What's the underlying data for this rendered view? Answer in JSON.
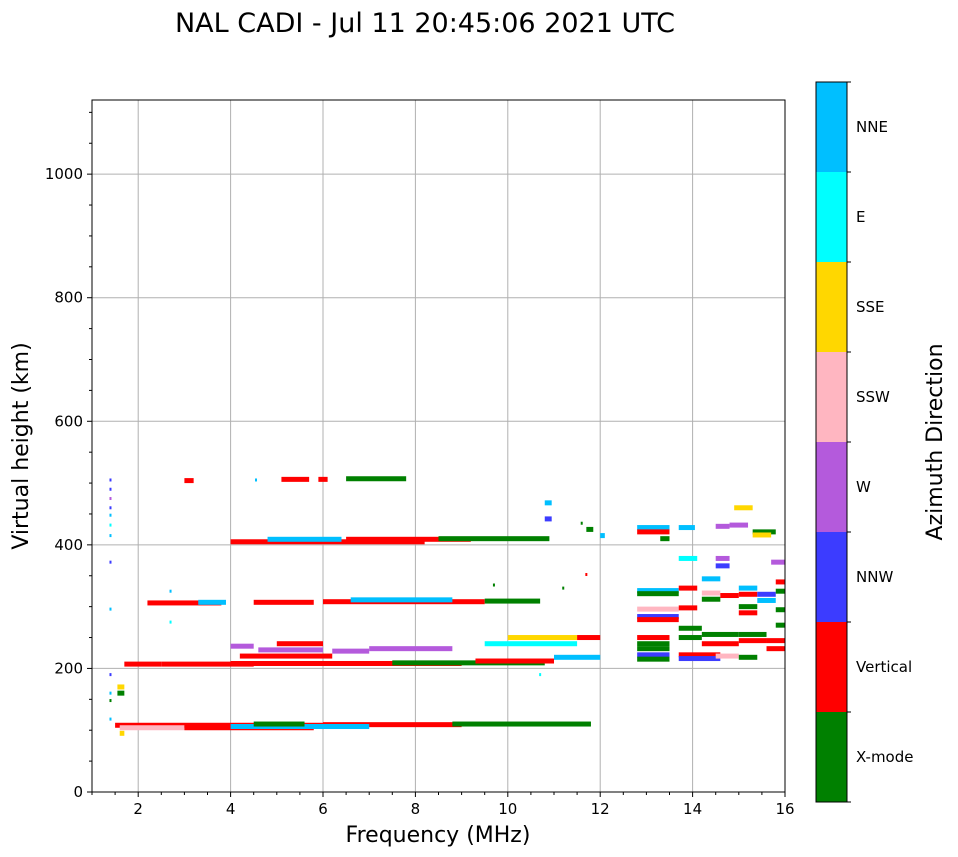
{
  "chart_data": {
    "type": "scatter",
    "title": "NAL CADI - Jul 11 20:45:06 2021 UTC",
    "xlabel": "Frequency (MHz)",
    "ylabel": "Virtual height (km)",
    "xlim": [
      1,
      16
    ],
    "ylim": [
      0,
      1120
    ],
    "xticks": [
      2,
      4,
      6,
      8,
      10,
      12,
      14,
      16
    ],
    "yticks": [
      0,
      200,
      400,
      600,
      800,
      1000
    ],
    "grid": true,
    "colorbar": {
      "label": "Azimuth Direction",
      "categories": [
        {
          "name": "X-mode",
          "color": "#008000"
        },
        {
          "name": "Vertical",
          "color": "#ff0000"
        },
        {
          "name": "NNW",
          "color": "#3c3cff"
        },
        {
          "name": "W",
          "color": "#b45adc"
        },
        {
          "name": "SSW",
          "color": "#ffb6c1"
        },
        {
          "name": "SSE",
          "color": "#ffd700"
        },
        {
          "name": "E",
          "color": "#00ffff"
        },
        {
          "name": "NNE",
          "color": "#00bfff"
        }
      ]
    },
    "traces": [
      {
        "x1": 1.5,
        "x2": 6.0,
        "h": 108,
        "cat": "Vertical"
      },
      {
        "x1": 6.0,
        "x2": 9.0,
        "h": 109,
        "cat": "Vertical"
      },
      {
        "x1": 8.8,
        "x2": 11.8,
        "h": 110,
        "cat": "X-mode"
      },
      {
        "x1": 1.6,
        "x2": 3.0,
        "h": 104,
        "cat": "SSW"
      },
      {
        "x1": 3.0,
        "x2": 5.8,
        "h": 104,
        "cat": "Vertical"
      },
      {
        "x1": 4.0,
        "x2": 7.0,
        "h": 106,
        "cat": "NNE"
      },
      {
        "x1": 4.5,
        "x2": 5.6,
        "h": 110,
        "cat": "X-mode"
      },
      {
        "x1": 1.6,
        "x2": 1.7,
        "h": 95,
        "cat": "SSE"
      },
      {
        "x1": 1.55,
        "x2": 1.7,
        "h": 160,
        "cat": "X-mode"
      },
      {
        "x1": 1.55,
        "x2": 1.7,
        "h": 170,
        "cat": "SSE"
      },
      {
        "x1": 1.7,
        "x2": 2.5,
        "h": 207,
        "cat": "Vertical"
      },
      {
        "x1": 2.5,
        "x2": 4.5,
        "h": 207,
        "cat": "Vertical"
      },
      {
        "x1": 4.0,
        "x2": 9.0,
        "h": 208,
        "cat": "Vertical"
      },
      {
        "x1": 7.5,
        "x2": 10.8,
        "h": 209,
        "cat": "X-mode"
      },
      {
        "x1": 9.3,
        "x2": 11.0,
        "h": 212,
        "cat": "Vertical"
      },
      {
        "x1": 11.0,
        "x2": 12.0,
        "h": 218,
        "cat": "NNE"
      },
      {
        "x1": 4.2,
        "x2": 6.2,
        "h": 220,
        "cat": "Vertical"
      },
      {
        "x1": 4.0,
        "x2": 4.5,
        "h": 236,
        "cat": "W"
      },
      {
        "x1": 4.6,
        "x2": 6.0,
        "h": 230,
        "cat": "W"
      },
      {
        "x1": 6.2,
        "x2": 7.0,
        "h": 228,
        "cat": "W"
      },
      {
        "x1": 7.0,
        "x2": 8.8,
        "h": 232,
        "cat": "W"
      },
      {
        "x1": 5.0,
        "x2": 6.0,
        "h": 240,
        "cat": "Vertical"
      },
      {
        "x1": 9.5,
        "x2": 11.5,
        "h": 240,
        "cat": "E"
      },
      {
        "x1": 10.0,
        "x2": 11.5,
        "h": 250,
        "cat": "SSE"
      },
      {
        "x1": 11.5,
        "x2": 12.0,
        "h": 250,
        "cat": "Vertical"
      },
      {
        "x1": 2.2,
        "x2": 3.8,
        "h": 306,
        "cat": "Vertical"
      },
      {
        "x1": 3.3,
        "x2": 3.9,
        "h": 307,
        "cat": "NNE"
      },
      {
        "x1": 4.5,
        "x2": 5.8,
        "h": 307,
        "cat": "Vertical"
      },
      {
        "x1": 6.0,
        "x2": 9.5,
        "h": 308,
        "cat": "Vertical"
      },
      {
        "x1": 6.6,
        "x2": 8.8,
        "h": 311,
        "cat": "NNE"
      },
      {
        "x1": 9.5,
        "x2": 10.7,
        "h": 309,
        "cat": "X-mode"
      },
      {
        "x1": 4.0,
        "x2": 8.2,
        "h": 405,
        "cat": "Vertical"
      },
      {
        "x1": 4.8,
        "x2": 6.4,
        "h": 409,
        "cat": "NNE"
      },
      {
        "x1": 6.5,
        "x2": 9.2,
        "h": 409,
        "cat": "Vertical"
      },
      {
        "x1": 8.5,
        "x2": 10.9,
        "h": 410,
        "cat": "X-mode"
      },
      {
        "x1": 3.0,
        "x2": 3.2,
        "h": 504,
        "cat": "Vertical"
      },
      {
        "x1": 5.1,
        "x2": 5.7,
        "h": 506,
        "cat": "Vertical"
      },
      {
        "x1": 5.9,
        "x2": 6.1,
        "h": 506,
        "cat": "Vertical"
      },
      {
        "x1": 6.5,
        "x2": 7.8,
        "h": 507,
        "cat": "X-mode"
      },
      {
        "x1": 10.8,
        "x2": 10.95,
        "h": 468,
        "cat": "NNE"
      },
      {
        "x1": 10.8,
        "x2": 10.95,
        "h": 442,
        "cat": "NNW"
      },
      {
        "x1": 11.7,
        "x2": 11.85,
        "h": 425,
        "cat": "X-mode"
      },
      {
        "x1": 12.0,
        "x2": 12.1,
        "h": 415,
        "cat": "NNE"
      },
      {
        "x1": 12.8,
        "x2": 13.5,
        "h": 428,
        "cat": "NNE"
      },
      {
        "x1": 12.8,
        "x2": 13.5,
        "h": 421,
        "cat": "Vertical"
      },
      {
        "x1": 13.3,
        "x2": 13.5,
        "h": 410,
        "cat": "X-mode"
      },
      {
        "x1": 13.7,
        "x2": 14.05,
        "h": 428,
        "cat": "NNE"
      },
      {
        "x1": 14.5,
        "x2": 14.8,
        "h": 430,
        "cat": "W"
      },
      {
        "x1": 14.8,
        "x2": 15.2,
        "h": 432,
        "cat": "W"
      },
      {
        "x1": 14.9,
        "x2": 15.3,
        "h": 460,
        "cat": "SSE"
      },
      {
        "x1": 15.3,
        "x2": 15.8,
        "h": 421,
        "cat": "X-mode"
      },
      {
        "x1": 15.3,
        "x2": 15.7,
        "h": 416,
        "cat": "SSE"
      },
      {
        "x1": 13.7,
        "x2": 14.1,
        "h": 378,
        "cat": "E"
      },
      {
        "x1": 14.5,
        "x2": 14.8,
        "h": 378,
        "cat": "W"
      },
      {
        "x1": 14.5,
        "x2": 14.8,
        "h": 366,
        "cat": "NNW"
      },
      {
        "x1": 15.7,
        "x2": 16.0,
        "h": 372,
        "cat": "W"
      },
      {
        "x1": 12.8,
        "x2": 13.7,
        "h": 326,
        "cat": "NNE"
      },
      {
        "x1": 12.8,
        "x2": 13.7,
        "h": 321,
        "cat": "X-mode"
      },
      {
        "x1": 12.8,
        "x2": 13.7,
        "h": 296,
        "cat": "SSW"
      },
      {
        "x1": 12.8,
        "x2": 13.7,
        "h": 284,
        "cat": "NNW"
      },
      {
        "x1": 12.8,
        "x2": 13.7,
        "h": 279,
        "cat": "Vertical"
      },
      {
        "x1": 13.7,
        "x2": 14.1,
        "h": 298,
        "cat": "Vertical"
      },
      {
        "x1": 13.7,
        "x2": 14.1,
        "h": 330,
        "cat": "Vertical"
      },
      {
        "x1": 14.2,
        "x2": 14.6,
        "h": 345,
        "cat": "NNE"
      },
      {
        "x1": 14.2,
        "x2": 14.6,
        "h": 322,
        "cat": "SSW"
      },
      {
        "x1": 14.2,
        "x2": 14.6,
        "h": 312,
        "cat": "X-mode"
      },
      {
        "x1": 14.6,
        "x2": 15.0,
        "h": 318,
        "cat": "Vertical"
      },
      {
        "x1": 15.0,
        "x2": 15.4,
        "h": 330,
        "cat": "NNE"
      },
      {
        "x1": 15.0,
        "x2": 15.4,
        "h": 320,
        "cat": "Vertical"
      },
      {
        "x1": 15.0,
        "x2": 15.4,
        "h": 300,
        "cat": "X-mode"
      },
      {
        "x1": 15.0,
        "x2": 15.4,
        "h": 290,
        "cat": "Vertical"
      },
      {
        "x1": 15.4,
        "x2": 15.8,
        "h": 320,
        "cat": "NNW"
      },
      {
        "x1": 15.4,
        "x2": 15.8,
        "h": 310,
        "cat": "NNE"
      },
      {
        "x1": 15.8,
        "x2": 16.0,
        "h": 340,
        "cat": "Vertical"
      },
      {
        "x1": 15.8,
        "x2": 16.0,
        "h": 325,
        "cat": "X-mode"
      },
      {
        "x1": 15.8,
        "x2": 16.0,
        "h": 295,
        "cat": "X-mode"
      },
      {
        "x1": 15.8,
        "x2": 16.0,
        "h": 270,
        "cat": "X-mode"
      },
      {
        "x1": 12.8,
        "x2": 13.5,
        "h": 250,
        "cat": "Vertical"
      },
      {
        "x1": 12.8,
        "x2": 13.5,
        "h": 240,
        "cat": "X-mode"
      },
      {
        "x1": 12.8,
        "x2": 13.5,
        "h": 232,
        "cat": "X-mode"
      },
      {
        "x1": 12.8,
        "x2": 13.5,
        "h": 222,
        "cat": "NNW"
      },
      {
        "x1": 12.8,
        "x2": 13.5,
        "h": 215,
        "cat": "X-mode"
      },
      {
        "x1": 13.7,
        "x2": 14.6,
        "h": 222,
        "cat": "Vertical"
      },
      {
        "x1": 13.7,
        "x2": 14.6,
        "h": 216,
        "cat": "NNW"
      },
      {
        "x1": 13.7,
        "x2": 14.2,
        "h": 250,
        "cat": "X-mode"
      },
      {
        "x1": 13.7,
        "x2": 14.2,
        "h": 265,
        "cat": "X-mode"
      },
      {
        "x1": 14.2,
        "x2": 15.0,
        "h": 255,
        "cat": "X-mode"
      },
      {
        "x1": 14.2,
        "x2": 15.0,
        "h": 240,
        "cat": "Vertical"
      },
      {
        "x1": 14.5,
        "x2": 15.0,
        "h": 220,
        "cat": "SSW"
      },
      {
        "x1": 15.0,
        "x2": 15.6,
        "h": 255,
        "cat": "X-mode"
      },
      {
        "x1": 15.0,
        "x2": 15.6,
        "h": 245,
        "cat": "Vertical"
      },
      {
        "x1": 15.0,
        "x2": 15.4,
        "h": 218,
        "cat": "X-mode"
      },
      {
        "x1": 15.6,
        "x2": 16.0,
        "h": 245,
        "cat": "Vertical"
      },
      {
        "x1": 15.6,
        "x2": 16.0,
        "h": 232,
        "cat": "Vertical"
      }
    ],
    "points": [
      {
        "x": 1.4,
        "h": 505,
        "cat": "NNW"
      },
      {
        "x": 1.4,
        "h": 490,
        "cat": "NNW"
      },
      {
        "x": 1.4,
        "h": 475,
        "cat": "W"
      },
      {
        "x": 1.4,
        "h": 460,
        "cat": "NNW"
      },
      {
        "x": 1.4,
        "h": 448,
        "cat": "NNE"
      },
      {
        "x": 1.4,
        "h": 432,
        "cat": "E"
      },
      {
        "x": 1.4,
        "h": 415,
        "cat": "NNE"
      },
      {
        "x": 1.4,
        "h": 372,
        "cat": "NNW"
      },
      {
        "x": 1.4,
        "h": 296,
        "cat": "NNE"
      },
      {
        "x": 1.4,
        "h": 190,
        "cat": "NNW"
      },
      {
        "x": 1.4,
        "h": 160,
        "cat": "NNE"
      },
      {
        "x": 1.4,
        "h": 148,
        "cat": "X-mode"
      },
      {
        "x": 1.4,
        "h": 118,
        "cat": "NNE"
      },
      {
        "x": 2.7,
        "h": 325,
        "cat": "NNE"
      },
      {
        "x": 2.7,
        "h": 275,
        "cat": "E"
      },
      {
        "x": 4.55,
        "h": 505,
        "cat": "NNE"
      },
      {
        "x": 10.7,
        "h": 190,
        "cat": "E"
      },
      {
        "x": 11.6,
        "h": 435,
        "cat": "X-mode"
      },
      {
        "x": 11.2,
        "h": 330,
        "cat": "X-mode"
      },
      {
        "x": 11.7,
        "h": 352,
        "cat": "Vertical"
      },
      {
        "x": 9.7,
        "h": 335,
        "cat": "X-mode"
      }
    ]
  }
}
